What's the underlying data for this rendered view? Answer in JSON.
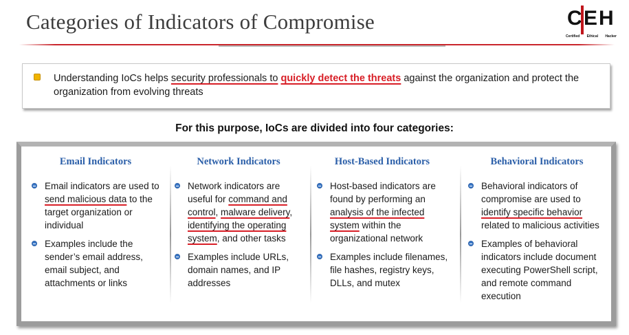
{
  "header": {
    "title": "Categories of Indicators of Compromise",
    "logo": {
      "letters": [
        "C",
        "E",
        "H"
      ],
      "sub": [
        "Certified",
        "Ethical",
        "Hacker"
      ],
      "accent": "#c0161c"
    }
  },
  "callout": {
    "part1": "Understanding IoCs helps ",
    "part2": "security professionals to",
    "part3": " ",
    "highlight": "quickly detect the threats",
    "part4": " against the organization and protect the organization from evolving threats"
  },
  "subheading": "For this purpose, IoCs are divided into four categories:",
  "categories": [
    {
      "title": "Email Indicators",
      "b1": {
        "a": "Email indicators are used to ",
        "u": "send malicious data",
        "b": " to the target organization or individual"
      },
      "b2": "Examples include the sender’s email address, email subject, and attachments or links"
    },
    {
      "title": "Network Indicators",
      "b1": {
        "a": "Network indicators are useful for ",
        "u1": "command and control",
        "m1": ", ",
        "u2": "malware delivery",
        "m2": ", ",
        "u3": "identifying the operating system",
        "b": ", and other tasks"
      },
      "b2": "Examples include URLs, domain names, and IP addresses"
    },
    {
      "title": "Host-Based Indicators",
      "b1": {
        "a": "Host-based indicators are found by performing an ",
        "u": "analysis of the infected system",
        "b": " within the organizational network"
      },
      "b2": "Examples include filenames, file hashes, registry keys, DLLs, and mutex"
    },
    {
      "title": "Behavioral Indicators",
      "b1": {
        "a": "Behavioral indicators of compromise are used to ",
        "u": "identify specific behavior",
        "b": " related to malicious activities"
      },
      "b2": "Examples of behavioral indicators include document executing PowerShell script, and remote command execution"
    }
  ],
  "colors": {
    "heading_blue": "#2a5ea8",
    "highlight_red": "#d81e26",
    "bullet_blue": "#3a78c8",
    "bullet_yellow": "#f0b400"
  }
}
